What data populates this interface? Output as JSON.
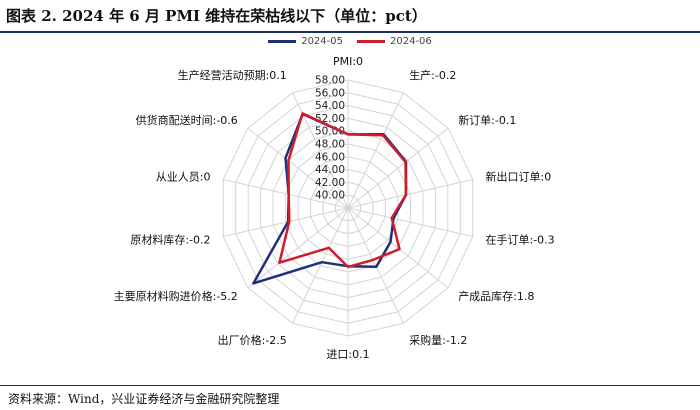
{
  "title": "图表 2.   2024 年 6 月 PMI 维持在荣枯线以下（单位：pct）",
  "source": "资料来源：Wind，兴业证券经济与金融研究院整理",
  "colors": {
    "series_1": "#1f2f7a",
    "series_2": "#cc1e2b",
    "grid": "#d4d4d4",
    "text": "#111111"
  },
  "chart_data": {
    "type": "radar",
    "title": "",
    "categories": [
      "PMI:0",
      "生产:-0.2",
      "新订单:-0.1",
      "新出口订单:0",
      "在手订单:-0.3",
      "产成品库存:1.8",
      "采购量:-1.2",
      "进口:0.1",
      "出厂价格:-2.5",
      "主要原材料购进价格:-5.2",
      "原材料库存:-0.2",
      "从业人员:0",
      "供货商配送时间:-0.6",
      "生产经营活动预期:0.1"
    ],
    "r_axis": {
      "min": 38,
      "max": 58,
      "tick_labels": [
        "40.00",
        "42.00",
        "44.00",
        "46.00",
        "48.00",
        "50.00",
        "52.00",
        "54.00",
        "56.00",
        "58.00"
      ],
      "ticks": [
        40,
        42,
        44,
        46,
        48,
        50,
        52,
        54,
        56,
        58
      ]
    },
    "grid": true,
    "legend_position": "top-center",
    "series": [
      {
        "name": "2024-05",
        "color": "#1f2f7a",
        "values": [
          49.5,
          50.8,
          49.6,
          47.3,
          45.3,
          46.5,
          48.2,
          47.1,
          47.4,
          56.9,
          47.6,
          47.5,
          50.5,
          54.3
        ]
      },
      {
        "name": "2024-06",
        "color": "#cc1e2b",
        "values": [
          49.5,
          50.6,
          49.5,
          47.3,
          45.0,
          48.3,
          47.0,
          47.2,
          44.9,
          51.7,
          47.4,
          47.5,
          49.9,
          54.4
        ]
      }
    ]
  }
}
